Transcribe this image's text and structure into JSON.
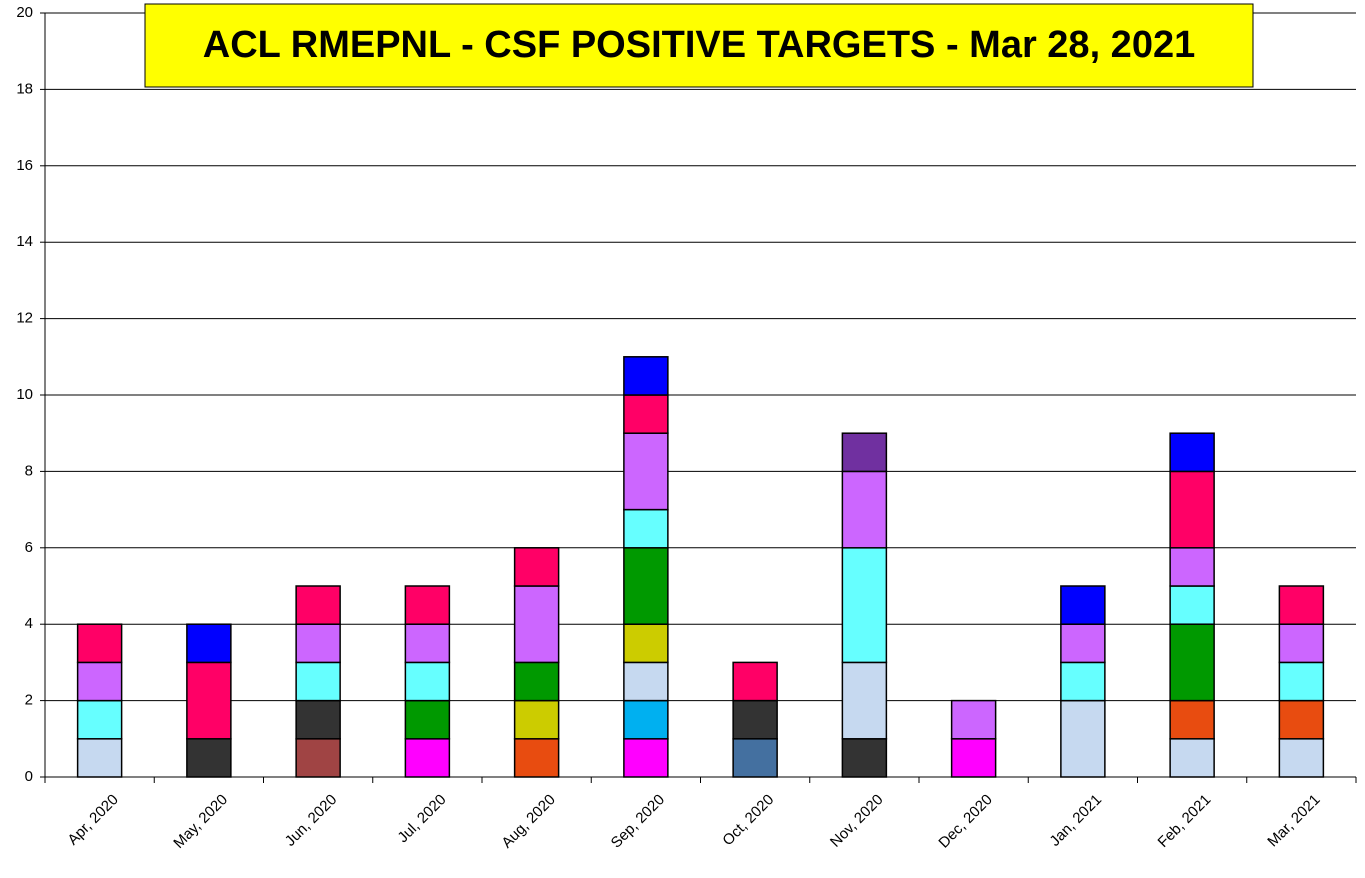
{
  "chart_data": {
    "type": "stacked-bar",
    "title": "ACL RMEPNL - CSF POSITIVE TARGETS - Mar 28, 2021",
    "categories": [
      "Apr, 2020",
      "May, 2020",
      "Jun, 2020",
      "Jul, 2020",
      "Aug, 2020",
      "Sep, 2020",
      "Oct, 2020",
      "Nov, 2020",
      "Dec, 2020",
      "Jan, 2021",
      "Feb, 2021",
      "Mar, 2021"
    ],
    "series": [
      {
        "color": "#4470a0",
        "values": [
          null,
          null,
          null,
          null,
          null,
          null,
          1,
          null,
          null,
          null,
          null,
          null
        ]
      },
      {
        "color": "#a04444",
        "values": [
          null,
          null,
          1,
          null,
          null,
          null,
          null,
          null,
          null,
          null,
          null,
          null
        ]
      },
      {
        "color": "#ff00ff",
        "values": [
          null,
          null,
          null,
          1,
          null,
          1,
          null,
          null,
          1,
          null,
          null,
          null
        ]
      },
      {
        "color": "#00b0f0",
        "values": [
          null,
          null,
          null,
          null,
          null,
          1,
          null,
          null,
          null,
          null,
          null,
          null
        ]
      },
      {
        "color": "#333333",
        "values": [
          null,
          1,
          1,
          null,
          null,
          null,
          1,
          1,
          null,
          null,
          null,
          null
        ]
      },
      {
        "color": "#c6d9f0",
        "values": [
          1,
          null,
          null,
          null,
          null,
          1,
          null,
          2,
          null,
          2,
          1,
          1
        ]
      },
      {
        "color": "#e84c10",
        "values": [
          null,
          null,
          null,
          null,
          1,
          null,
          null,
          null,
          null,
          null,
          1,
          1
        ]
      },
      {
        "color": "#cccc00",
        "values": [
          null,
          null,
          null,
          null,
          1,
          1,
          null,
          null,
          null,
          null,
          null,
          null
        ]
      },
      {
        "color": "#009900",
        "values": [
          null,
          null,
          null,
          1,
          1,
          2,
          null,
          null,
          null,
          null,
          2,
          null
        ]
      },
      {
        "color": "#66ffff",
        "values": [
          1,
          null,
          1,
          1,
          null,
          1,
          null,
          3,
          null,
          1,
          1,
          1
        ]
      },
      {
        "color": "#cc66ff",
        "values": [
          1,
          null,
          1,
          1,
          2,
          2,
          null,
          2,
          1,
          1,
          1,
          1
        ]
      },
      {
        "color": "#7030a0",
        "values": [
          null,
          null,
          null,
          null,
          null,
          null,
          null,
          1,
          null,
          null,
          null,
          null
        ]
      },
      {
        "color": "#ff0066",
        "values": [
          1,
          2,
          1,
          1,
          1,
          1,
          1,
          null,
          null,
          null,
          2,
          1
        ]
      },
      {
        "color": "#0000ff",
        "values": [
          null,
          1,
          null,
          null,
          null,
          1,
          null,
          null,
          null,
          1,
          1,
          null
        ]
      }
    ],
    "ylim": [
      0,
      20
    ],
    "yticks": [
      0,
      2,
      4,
      6,
      8,
      10,
      12,
      14,
      16,
      18,
      20
    ],
    "grid": true
  }
}
